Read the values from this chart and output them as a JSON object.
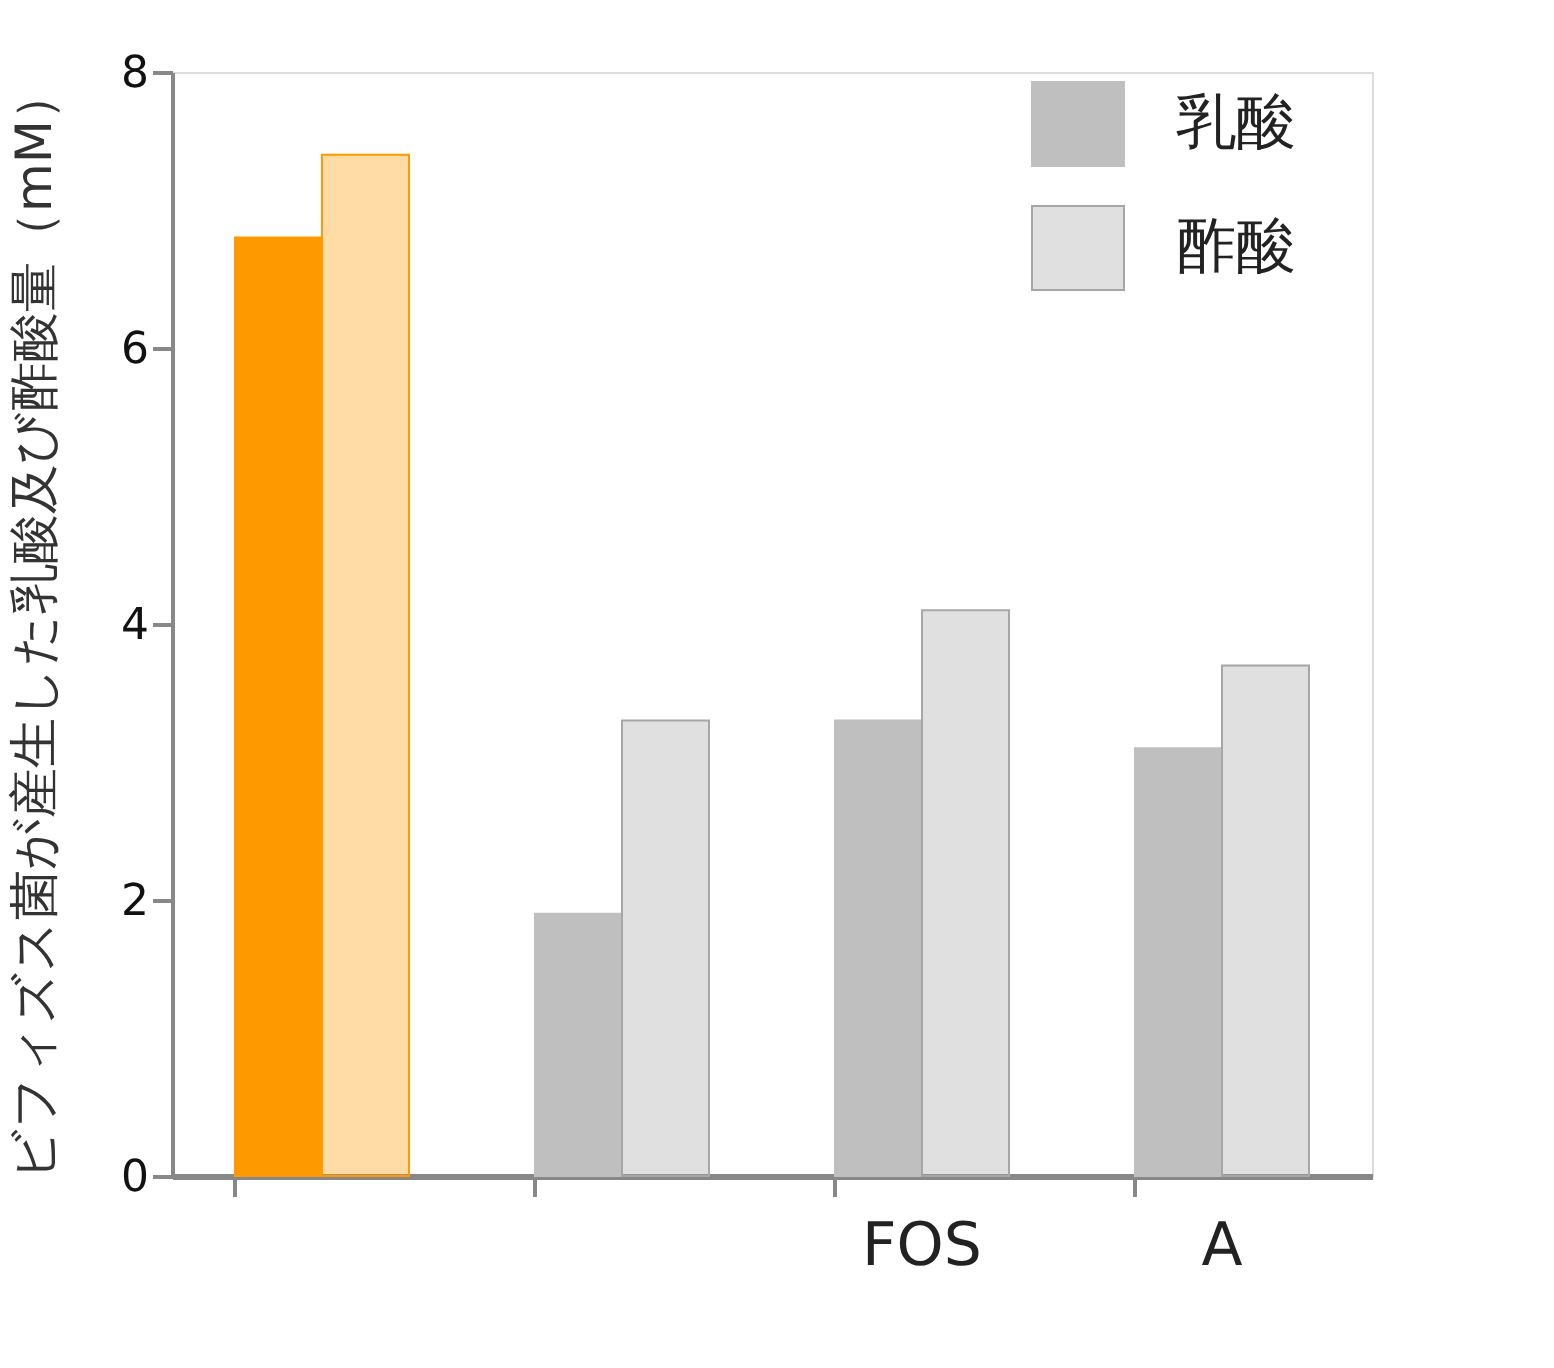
{
  "chart_data": {
    "type": "bar",
    "ylabel": "ビフィズス菌が産生した乳酸及び酢酸量（mM）",
    "categories": [
      null,
      null,
      "FOS",
      "A"
    ],
    "series": [
      {
        "name": "乳酸",
        "color": "#bfbfbf",
        "colors": [
          "#ff9900",
          "#bfbfbf",
          "#bfbfbf",
          "#bfbfbf"
        ],
        "values": [
          6.8,
          1.9,
          3.3,
          3.1
        ]
      },
      {
        "name": "酢酸",
        "color": "#a6a6a6",
        "colors": [
          "#ff9900",
          "#a6a6a6",
          "#a6a6a6",
          "#a6a6a6"
        ],
        "values": [
          7.4,
          3.3,
          4.1,
          3.7
        ]
      }
    ],
    "ylim": [
      0,
      8
    ],
    "yticks": [
      0,
      2,
      4,
      6,
      8
    ],
    "legend": "top right"
  }
}
